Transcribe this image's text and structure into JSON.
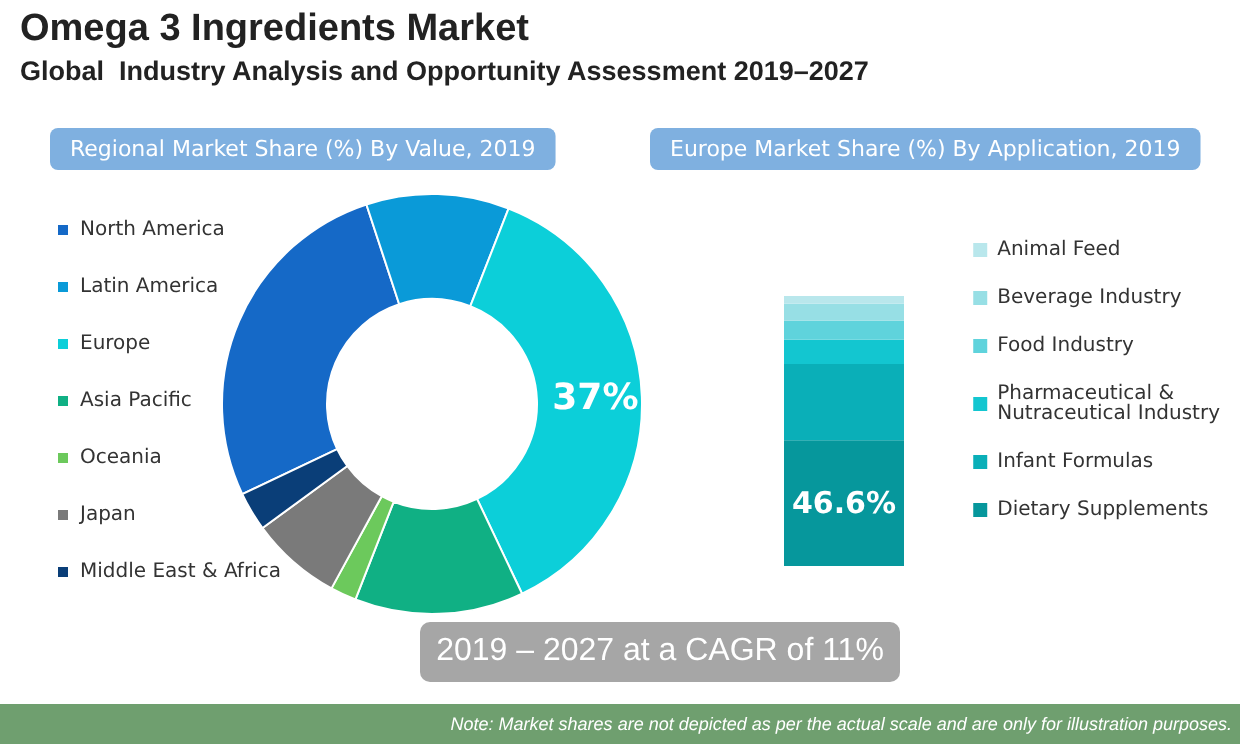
{
  "chart_data": [
    {
      "type": "donut",
      "title": "Regional Market Share (%) By Value, 2019",
      "categories": [
        "North America",
        "Latin America",
        "Europe",
        "Asia Pacific",
        "Oceania",
        "Japan",
        "Middle East & Africa"
      ],
      "values": [
        27,
        11,
        37,
        13,
        2,
        7,
        3
      ],
      "colors": [
        "#1569c7",
        "#0a9ad8",
        "#0ccfd9",
        "#10b084",
        "#6cc95c",
        "#7a7a7a",
        "#0a3e78"
      ],
      "value_labels": [
        null,
        null,
        "37%",
        null,
        null,
        null,
        null
      ],
      "legend": "left",
      "annotations": [
        "Omega 3 Ingredients Market",
        "Global  Industry Analysis and Opportunity Assessment 2019–2027",
        "2019 – 2027 at a CAGR of 11%",
        "Note: Market shares are not depicted as per the actual scale and are only for illustration purposes."
      ]
    },
    {
      "type": "bar",
      "title": "Europe Market Share (%) By Application, 2019",
      "stacked": true,
      "categories": [
        null
      ],
      "ylim": [
        0,
        100
      ],
      "tick_labels": false,
      "legend": "right",
      "series": [
        {
          "name": "Dietary Supplements",
          "color": "#06979c",
          "values": [
            46.6
          ],
          "value_labels": [
            "46.6%"
          ]
        },
        {
          "name": "Infant Formulas",
          "color": "#0aafb8",
          "values": [
            28.2
          ]
        },
        {
          "name": "Pharmaceutical & Nutraceutical Industry",
          "color": "#13c6d0",
          "values": [
            9
          ]
        },
        {
          "name": "Food Industry",
          "color": "#5fd3dc",
          "values": [
            7
          ]
        },
        {
          "name": "Beverage Industry",
          "color": "#97dfe5",
          "values": [
            6.3
          ]
        },
        {
          "name": "Animal Feed",
          "color": "#b9e7ec",
          "values": [
            2.9
          ]
        }
      ]
    }
  ]
}
